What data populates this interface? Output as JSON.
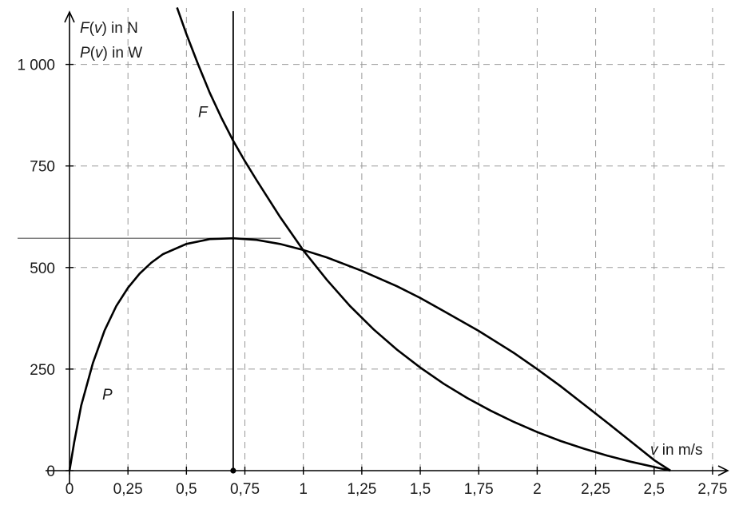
{
  "chart_data": {
    "type": "line",
    "x_label_var": "v",
    "x_label_unit": "in m/s",
    "y_label_line1_fn": "F",
    "y_label_line1_arg": "v",
    "y_label_line1_unit": "in N",
    "y_label_line2_fn": "P",
    "y_label_line2_arg": "v",
    "y_label_line2_unit": "in W",
    "xlim": [
      0,
      2.83
    ],
    "ylim": [
      0,
      1140
    ],
    "x_ticks": [
      {
        "value": 0,
        "label": "0"
      },
      {
        "value": 0.25,
        "label": "0,25"
      },
      {
        "value": 0.5,
        "label": "0,5"
      },
      {
        "value": 0.75,
        "label": "0,75"
      },
      {
        "value": 1,
        "label": "1"
      },
      {
        "value": 1.25,
        "label": "1,25"
      },
      {
        "value": 1.5,
        "label": "1,5"
      },
      {
        "value": 1.75,
        "label": "1,75"
      },
      {
        "value": 2,
        "label": "2"
      },
      {
        "value": 2.25,
        "label": "2,25"
      },
      {
        "value": 2.5,
        "label": "2,5"
      },
      {
        "value": 2.75,
        "label": "2,75"
      }
    ],
    "y_ticks": [
      {
        "value": 0,
        "label": "0"
      },
      {
        "value": 250,
        "label": "250"
      },
      {
        "value": 500,
        "label": "500"
      },
      {
        "value": 750,
        "label": "750"
      },
      {
        "value": 1000,
        "label": "1 000"
      }
    ],
    "grid": true,
    "series": [
      {
        "name": "F",
        "label_at": {
          "x": 0.55,
          "y": 870
        },
        "points": [
          [
            0.46,
            1140
          ],
          [
            0.5,
            1075
          ],
          [
            0.55,
            1000
          ],
          [
            0.6,
            930
          ],
          [
            0.65,
            868
          ],
          [
            0.7,
            812
          ],
          [
            0.75,
            762
          ],
          [
            0.8,
            715
          ],
          [
            0.9,
            625
          ],
          [
            1.0,
            542
          ],
          [
            1.1,
            470
          ],
          [
            1.2,
            405
          ],
          [
            1.3,
            348
          ],
          [
            1.4,
            298
          ],
          [
            1.5,
            254
          ],
          [
            1.6,
            214
          ],
          [
            1.7,
            179
          ],
          [
            1.8,
            148
          ],
          [
            1.9,
            120
          ],
          [
            2.0,
            95
          ],
          [
            2.1,
            73
          ],
          [
            2.2,
            54
          ],
          [
            2.3,
            37
          ],
          [
            2.4,
            22
          ],
          [
            2.5,
            9
          ],
          [
            2.57,
            0
          ]
        ]
      },
      {
        "name": "P",
        "label_at": {
          "x": 0.14,
          "y": 175
        },
        "points": [
          [
            0.0,
            0
          ],
          [
            0.02,
            70
          ],
          [
            0.05,
            160
          ],
          [
            0.1,
            265
          ],
          [
            0.15,
            345
          ],
          [
            0.2,
            405
          ],
          [
            0.25,
            450
          ],
          [
            0.3,
            485
          ],
          [
            0.35,
            512
          ],
          [
            0.4,
            533
          ],
          [
            0.5,
            558
          ],
          [
            0.6,
            570
          ],
          [
            0.7,
            572
          ],
          [
            0.8,
            568
          ],
          [
            0.9,
            558
          ],
          [
            1.0,
            543
          ],
          [
            1.1,
            525
          ],
          [
            1.25,
            492
          ],
          [
            1.4,
            454
          ],
          [
            1.5,
            425
          ],
          [
            1.6,
            393
          ],
          [
            1.75,
            344
          ],
          [
            1.9,
            290
          ],
          [
            2.0,
            250
          ],
          [
            2.1,
            208
          ],
          [
            2.2,
            163
          ],
          [
            2.3,
            118
          ],
          [
            2.4,
            72
          ],
          [
            2.5,
            26
          ],
          [
            2.57,
            0
          ]
        ]
      }
    ],
    "annotations": {
      "vline_x": 0.7,
      "hline_y": 572,
      "hline_x_range": [
        0,
        0.9
      ],
      "marked_point": {
        "x": 0.7,
        "y": 0
      }
    }
  }
}
